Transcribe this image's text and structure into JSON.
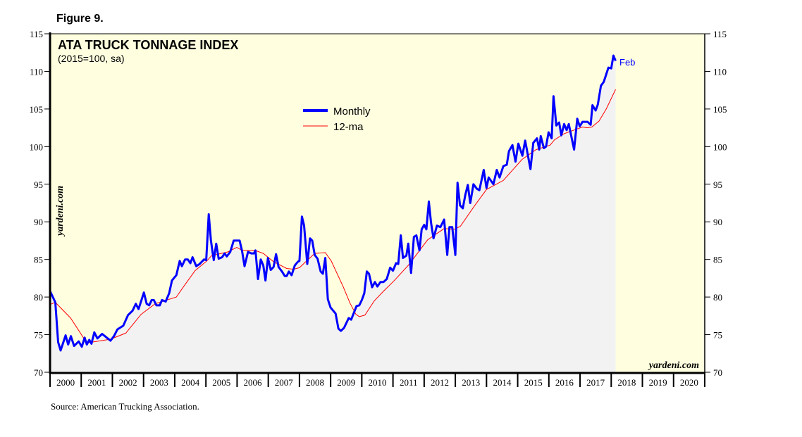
{
  "figure_label": "Figure 9.",
  "source": "Source: American Trucking Association.",
  "watermark": "yardeni.com",
  "colors": {
    "monthly": "#0000ff",
    "ma": "#ff0000",
    "plot_bg": "#ffffe0",
    "fill": "#f2f2f2"
  },
  "chart_data": {
    "type": "line",
    "title": "ATA TRUCK TONNAGE INDEX",
    "subtitle": "(2015=100, sa)",
    "xlabel": "",
    "ylabel": "",
    "xlim": [
      2000,
      2021
    ],
    "ylim": [
      70,
      115
    ],
    "yticks": [
      70,
      75,
      80,
      85,
      90,
      95,
      100,
      105,
      110,
      115
    ],
    "xtick_labels": [
      "2000",
      "2001",
      "2002",
      "2003",
      "2004",
      "2005",
      "2006",
      "2007",
      "2008",
      "2009",
      "2010",
      "2011",
      "2012",
      "2013",
      "2014",
      "2015",
      "2016",
      "2017",
      "2018",
      "2019",
      "2020"
    ],
    "legend": {
      "placement": "top-center",
      "entries": [
        "Monthly",
        "12-ma"
      ]
    },
    "end_annotation": "Feb",
    "series": [
      {
        "name": "Monthly",
        "points": [
          [
            2000.0,
            80.8
          ],
          [
            2000.17,
            79.3
          ],
          [
            2000.26,
            74.0
          ],
          [
            2000.34,
            72.9
          ],
          [
            2000.5,
            74.9
          ],
          [
            2000.58,
            73.7
          ],
          [
            2000.67,
            74.8
          ],
          [
            2000.77,
            73.5
          ],
          [
            2000.92,
            74.1
          ],
          [
            2001.02,
            73.4
          ],
          [
            2001.11,
            74.6
          ],
          [
            2001.18,
            73.7
          ],
          [
            2001.26,
            74.3
          ],
          [
            2001.33,
            73.8
          ],
          [
            2001.42,
            75.3
          ],
          [
            2001.52,
            74.5
          ],
          [
            2001.67,
            75.1
          ],
          [
            2001.82,
            74.6
          ],
          [
            2001.94,
            74.2
          ],
          [
            2002.05,
            74.8
          ],
          [
            2002.16,
            75.7
          ],
          [
            2002.35,
            76.2
          ],
          [
            2002.5,
            77.6
          ],
          [
            2002.65,
            78.2
          ],
          [
            2002.75,
            79.1
          ],
          [
            2002.84,
            78.4
          ],
          [
            2003.01,
            80.6
          ],
          [
            2003.1,
            79.1
          ],
          [
            2003.18,
            78.9
          ],
          [
            2003.26,
            79.6
          ],
          [
            2003.33,
            79.6
          ],
          [
            2003.41,
            78.9
          ],
          [
            2003.52,
            78.9
          ],
          [
            2003.59,
            79.6
          ],
          [
            2003.71,
            79.4
          ],
          [
            2003.82,
            80.5
          ],
          [
            2003.91,
            82.2
          ],
          [
            2004.05,
            82.9
          ],
          [
            2004.16,
            84.8
          ],
          [
            2004.23,
            84.1
          ],
          [
            2004.33,
            85.0
          ],
          [
            2004.42,
            85.0
          ],
          [
            2004.5,
            84.5
          ],
          [
            2004.57,
            85.3
          ],
          [
            2004.69,
            84.1
          ],
          [
            2004.8,
            84.4
          ],
          [
            2004.94,
            85.0
          ],
          [
            2005.01,
            84.9
          ],
          [
            2005.09,
            91.0
          ],
          [
            2005.16,
            87.5
          ],
          [
            2005.25,
            84.9
          ],
          [
            2005.33,
            87.1
          ],
          [
            2005.41,
            85.1
          ],
          [
            2005.52,
            85.3
          ],
          [
            2005.6,
            85.8
          ],
          [
            2005.67,
            85.4
          ],
          [
            2005.78,
            86.0
          ],
          [
            2005.89,
            87.5
          ],
          [
            2006.08,
            87.5
          ],
          [
            2006.16,
            86.1
          ],
          [
            2006.24,
            84.1
          ],
          [
            2006.35,
            86.0
          ],
          [
            2006.46,
            85.8
          ],
          [
            2006.54,
            85.8
          ],
          [
            2006.59,
            86.2
          ],
          [
            2006.67,
            82.4
          ],
          [
            2006.76,
            85.0
          ],
          [
            2006.84,
            84.2
          ],
          [
            2006.91,
            82.2
          ],
          [
            2006.99,
            85.2
          ],
          [
            2007.08,
            83.6
          ],
          [
            2007.17,
            84.0
          ],
          [
            2007.25,
            85.7
          ],
          [
            2007.33,
            84.0
          ],
          [
            2007.44,
            83.4
          ],
          [
            2007.53,
            82.8
          ],
          [
            2007.59,
            82.8
          ],
          [
            2007.66,
            83.4
          ],
          [
            2007.75,
            82.9
          ],
          [
            2007.85,
            84.2
          ],
          [
            2007.95,
            84.7
          ],
          [
            2008.0,
            84.8
          ],
          [
            2008.08,
            90.7
          ],
          [
            2008.15,
            89.5
          ],
          [
            2008.25,
            84.4
          ],
          [
            2008.34,
            87.8
          ],
          [
            2008.41,
            87.5
          ],
          [
            2008.49,
            85.6
          ],
          [
            2008.58,
            85.1
          ],
          [
            2008.68,
            83.4
          ],
          [
            2008.75,
            83.1
          ],
          [
            2008.83,
            85.2
          ],
          [
            2008.91,
            79.7
          ],
          [
            2009.0,
            78.6
          ],
          [
            2009.16,
            77.8
          ],
          [
            2009.25,
            75.8
          ],
          [
            2009.33,
            75.5
          ],
          [
            2009.43,
            75.9
          ],
          [
            2009.58,
            77.2
          ],
          [
            2009.66,
            77.0
          ],
          [
            2009.83,
            78.8
          ],
          [
            2009.92,
            78.9
          ],
          [
            2010.0,
            79.6
          ],
          [
            2010.08,
            80.5
          ],
          [
            2010.16,
            83.4
          ],
          [
            2010.23,
            83.1
          ],
          [
            2010.33,
            81.3
          ],
          [
            2010.42,
            82.0
          ],
          [
            2010.5,
            81.4
          ],
          [
            2010.6,
            82.0
          ],
          [
            2010.7,
            82.0
          ],
          [
            2010.8,
            82.4
          ],
          [
            2010.91,
            83.9
          ],
          [
            2011.0,
            83.5
          ],
          [
            2011.1,
            84.5
          ],
          [
            2011.17,
            84.4
          ],
          [
            2011.25,
            88.2
          ],
          [
            2011.32,
            85.2
          ],
          [
            2011.43,
            85.5
          ],
          [
            2011.49,
            87.1
          ],
          [
            2011.58,
            83.2
          ],
          [
            2011.67,
            88.0
          ],
          [
            2011.75,
            88.2
          ],
          [
            2011.85,
            86.2
          ],
          [
            2011.92,
            89.0
          ],
          [
            2012.0,
            89.6
          ],
          [
            2012.07,
            89.0
          ],
          [
            2012.15,
            92.7
          ],
          [
            2012.22,
            89.9
          ],
          [
            2012.3,
            87.8
          ],
          [
            2012.41,
            89.5
          ],
          [
            2012.52,
            89.3
          ],
          [
            2012.64,
            90.3
          ],
          [
            2012.74,
            85.6
          ],
          [
            2012.81,
            89.3
          ],
          [
            2012.9,
            89.3
          ],
          [
            2013.0,
            85.6
          ],
          [
            2013.07,
            95.2
          ],
          [
            2013.15,
            92.2
          ],
          [
            2013.24,
            91.8
          ],
          [
            2013.32,
            93.6
          ],
          [
            2013.4,
            94.9
          ],
          [
            2013.48,
            92.5
          ],
          [
            2013.58,
            95.0
          ],
          [
            2013.69,
            94.4
          ],
          [
            2013.77,
            94.2
          ],
          [
            2013.91,
            96.9
          ],
          [
            2014.0,
            94.5
          ],
          [
            2014.07,
            95.9
          ],
          [
            2014.22,
            95.0
          ],
          [
            2014.33,
            96.9
          ],
          [
            2014.42,
            95.9
          ],
          [
            2014.54,
            97.4
          ],
          [
            2014.65,
            97.6
          ],
          [
            2014.72,
            99.4
          ],
          [
            2014.83,
            100.2
          ],
          [
            2014.93,
            98.0
          ],
          [
            2015.02,
            100.4
          ],
          [
            2015.15,
            98.8
          ],
          [
            2015.24,
            100.8
          ],
          [
            2015.41,
            97.0
          ],
          [
            2015.5,
            100.5
          ],
          [
            2015.62,
            101.1
          ],
          [
            2015.69,
            99.6
          ],
          [
            2015.74,
            101.4
          ],
          [
            2015.84,
            99.8
          ],
          [
            2015.91,
            100.0
          ],
          [
            2015.99,
            101.9
          ],
          [
            2016.09,
            101.1
          ],
          [
            2016.15,
            106.7
          ],
          [
            2016.24,
            102.8
          ],
          [
            2016.33,
            103.2
          ],
          [
            2016.4,
            101.5
          ],
          [
            2016.49,
            103.0
          ],
          [
            2016.57,
            102.2
          ],
          [
            2016.64,
            103.0
          ],
          [
            2016.81,
            99.6
          ],
          [
            2016.91,
            103.7
          ],
          [
            2016.99,
            102.7
          ],
          [
            2017.08,
            103.3
          ],
          [
            2017.24,
            103.3
          ],
          [
            2017.34,
            102.9
          ],
          [
            2017.4,
            105.5
          ],
          [
            2017.5,
            104.8
          ],
          [
            2017.57,
            105.6
          ],
          [
            2017.67,
            108.1
          ],
          [
            2017.76,
            108.6
          ],
          [
            2017.91,
            110.5
          ],
          [
            2018.0,
            110.4
          ],
          [
            2018.07,
            112.1
          ],
          [
            2018.14,
            111.4
          ]
        ]
      },
      {
        "name": "12-ma",
        "points": [
          [
            2000.0,
            79.0
          ],
          [
            2000.17,
            79.3
          ],
          [
            2000.66,
            77.2
          ],
          [
            2001.18,
            73.9
          ],
          [
            2001.94,
            74.4
          ],
          [
            2002.43,
            75.2
          ],
          [
            2002.92,
            77.7
          ],
          [
            2003.37,
            79.1
          ],
          [
            2004.05,
            80.0
          ],
          [
            2004.27,
            81.3
          ],
          [
            2004.65,
            83.5
          ],
          [
            2005.03,
            84.8
          ],
          [
            2005.18,
            85.5
          ],
          [
            2005.7,
            86.0
          ],
          [
            2005.99,
            86.6
          ],
          [
            2006.16,
            86.2
          ],
          [
            2006.57,
            86.2
          ],
          [
            2006.84,
            85.8
          ],
          [
            2007.17,
            84.7
          ],
          [
            2007.59,
            83.8
          ],
          [
            2007.81,
            83.7
          ],
          [
            2008.0,
            83.9
          ],
          [
            2008.23,
            84.8
          ],
          [
            2008.49,
            85.8
          ],
          [
            2008.83,
            85.9
          ],
          [
            2009.02,
            84.8
          ],
          [
            2009.4,
            81.4
          ],
          [
            2009.62,
            79.2
          ],
          [
            2009.81,
            77.7
          ],
          [
            2009.92,
            77.4
          ],
          [
            2010.1,
            77.6
          ],
          [
            2010.4,
            79.5
          ],
          [
            2010.7,
            80.8
          ],
          [
            2011.02,
            82.1
          ],
          [
            2011.51,
            84.3
          ],
          [
            2012.11,
            87.6
          ],
          [
            2012.64,
            89.1
          ],
          [
            2012.97,
            89.0
          ],
          [
            2013.16,
            89.4
          ],
          [
            2013.61,
            92.1
          ],
          [
            2014.0,
            94.3
          ],
          [
            2014.54,
            95.5
          ],
          [
            2015.14,
            98.3
          ],
          [
            2015.59,
            99.6
          ],
          [
            2016.04,
            100.2
          ],
          [
            2016.18,
            100.9
          ],
          [
            2016.48,
            101.7
          ],
          [
            2016.81,
            102.2
          ],
          [
            2017.08,
            102.6
          ],
          [
            2017.23,
            102.5
          ],
          [
            2017.38,
            102.6
          ],
          [
            2017.61,
            103.4
          ],
          [
            2017.84,
            105.0
          ],
          [
            2018.14,
            107.6
          ]
        ]
      }
    ]
  }
}
